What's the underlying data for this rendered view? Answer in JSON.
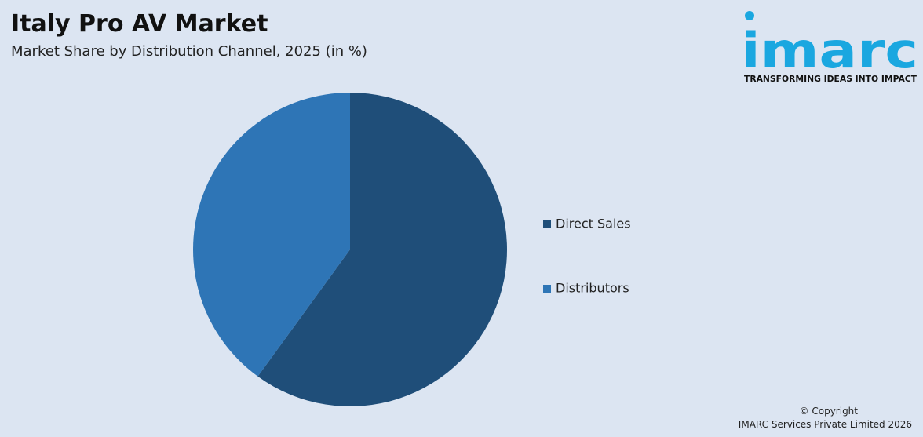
{
  "chart_data": {
    "type": "pie",
    "title": "Italy Pro AV Market",
    "subtitle": "Market Share by Distribution Channel, 2025 (in %)",
    "categories": [
      "Direct Sales",
      "Distributors"
    ],
    "values": [
      60,
      40
    ],
    "colors": [
      "#1f4e79",
      "#2e75b6"
    ],
    "legend": "right"
  },
  "logo": {
    "name": "imarc",
    "tagline": "TRANSFORMING IDEAS INTO IMPACT"
  },
  "footer": {
    "copyright": "© Copyright",
    "company": "IMARC Services Private Limited 2026"
  }
}
